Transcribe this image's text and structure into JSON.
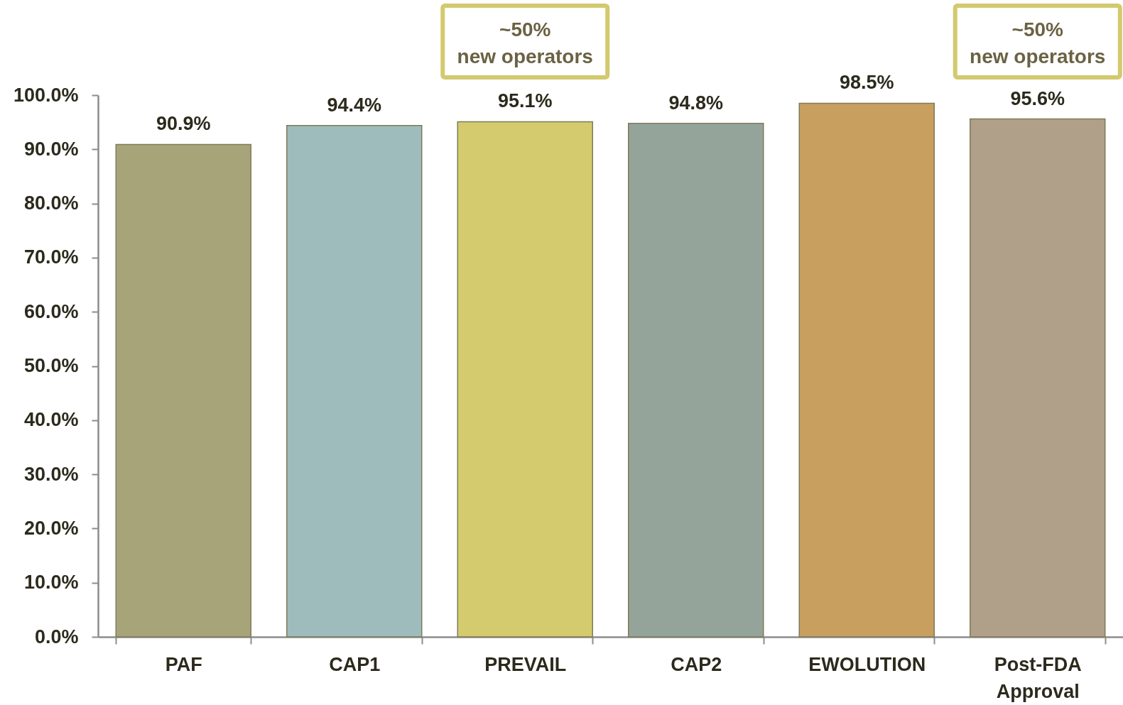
{
  "chart_data": {
    "type": "bar",
    "categories": [
      "PAF",
      "CAP1",
      "PREVAIL",
      "CAP2",
      "EWOLUTION",
      "Post-FDA Approval"
    ],
    "values": [
      90.9,
      94.4,
      95.1,
      94.8,
      98.5,
      95.6
    ],
    "value_labels": [
      "90.9%",
      "94.4%",
      "95.1%",
      "94.8%",
      "98.5%",
      "95.6%"
    ],
    "colors": [
      "#a8a47a",
      "#9ebcbc",
      "#d3cb6e",
      "#95a49b",
      "#c89f5e",
      "#b09f89"
    ],
    "ylim": [
      0,
      100
    ],
    "yticks": [
      {
        "value": 0,
        "label": "0.0%"
      },
      {
        "value": 10,
        "label": "10.0%"
      },
      {
        "value": 20,
        "label": "20.0%"
      },
      {
        "value": 30,
        "label": "30.0%"
      },
      {
        "value": 40,
        "label": "40.0%"
      },
      {
        "value": 50,
        "label": "50.0%"
      },
      {
        "value": 60,
        "label": "60.0%"
      },
      {
        "value": 70,
        "label": "70.0%"
      },
      {
        "value": 80,
        "label": "80.0%"
      },
      {
        "value": 90,
        "label": "90.0%"
      },
      {
        "value": 100,
        "label": "100.0%"
      }
    ],
    "annotations": [
      "~50%\nnew operators",
      "~50%\nnew operators"
    ]
  }
}
